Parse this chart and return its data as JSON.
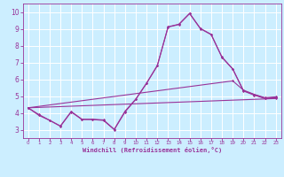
{
  "background_color": "#cceeff",
  "line_color": "#993399",
  "grid_color": "#ffffff",
  "xlabel": "Windchill (Refroidissement éolien,°C)",
  "xlim": [
    -0.5,
    23.5
  ],
  "ylim": [
    2.5,
    10.5
  ],
  "xticks": [
    0,
    1,
    2,
    3,
    4,
    5,
    6,
    7,
    8,
    9,
    10,
    11,
    12,
    13,
    14,
    15,
    16,
    17,
    18,
    19,
    20,
    21,
    22,
    23
  ],
  "yticks": [
    3,
    4,
    5,
    6,
    7,
    8,
    9,
    10
  ],
  "series": [
    {
      "x": [
        0,
        1,
        2,
        3,
        4,
        5,
        6,
        7,
        8,
        9,
        10,
        11,
        12,
        13,
        14,
        15,
        16,
        17,
        18,
        19,
        20,
        21,
        22,
        23
      ],
      "y": [
        4.3,
        3.85,
        3.55,
        3.2,
        4.05,
        3.6,
        3.6,
        3.55,
        3.0,
        4.05,
        4.8,
        5.75,
        6.8,
        9.1,
        9.25,
        9.9,
        9.0,
        8.65,
        7.3,
        6.6,
        5.3,
        5.05,
        4.85,
        4.9
      ]
    },
    {
      "x": [
        0,
        1,
        2,
        3,
        4,
        5,
        6,
        7,
        8,
        9,
        10,
        11,
        12,
        13,
        14,
        15,
        16,
        17,
        18,
        19,
        20,
        21,
        22,
        23
      ],
      "y": [
        4.3,
        3.9,
        3.56,
        3.22,
        4.08,
        3.62,
        3.62,
        3.58,
        3.02,
        4.1,
        4.82,
        5.77,
        6.82,
        9.12,
        9.27,
        9.92,
        9.02,
        8.67,
        7.32,
        6.62,
        5.32,
        5.08,
        4.87,
        4.92
      ]
    },
    {
      "x": [
        0,
        19,
        20,
        21,
        22,
        23
      ],
      "y": [
        4.3,
        5.9,
        5.35,
        5.1,
        4.9,
        4.95
      ]
    },
    {
      "x": [
        0,
        23
      ],
      "y": [
        4.3,
        4.85
      ]
    }
  ]
}
